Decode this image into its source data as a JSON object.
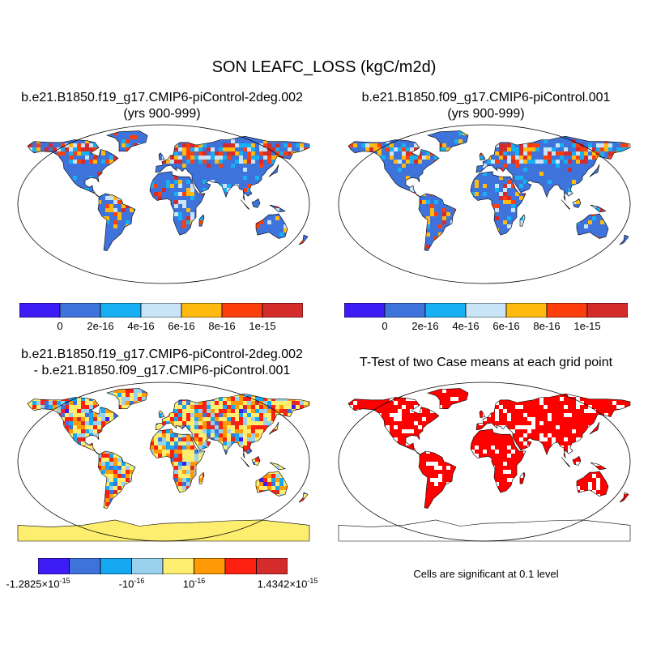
{
  "title": "SON LEAFC_LOSS (kgC/m2d)",
  "panels": {
    "top_left": {
      "title_line1": "b.e21.B1850.f19_g17.CMIP6-piControl-2deg.002",
      "title_line2": "(yrs 900-999)"
    },
    "top_right": {
      "title_line1": "b.e21.B1850.f09_g17.CMIP6-piControl.001",
      "title_line2": "(yrs 900-999)"
    },
    "bottom_left": {
      "title_line1": "b.e21.B1850.f19_g17.CMIP6-piControl-2deg.002",
      "title_line2": "- b.e21.B1850.f09_g17.CMIP6-piControl.001"
    },
    "bottom_right": {
      "title": "T-Test of two Case means at each grid point",
      "note": "Cells are significant at 0.1 level"
    }
  },
  "colorbar_top": {
    "colors": [
      "#3e1cf5",
      "#3f73dc",
      "#16b0f3",
      "#c8e4f6",
      "#ffb90f",
      "#fe3e0c",
      "#d42b2b"
    ],
    "labels": [
      "0",
      "2e-16",
      "4e-16",
      "6e-16",
      "8e-16",
      "1e-15"
    ]
  },
  "colorbar_diff": {
    "colors": [
      "#3e1cf5",
      "#3f73dc",
      "#16a8f3",
      "#9ad2ee",
      "#fdee70",
      "#ff9a06",
      "#fe2010",
      "#d42b2b"
    ],
    "labels": [
      {
        "base": "-1.2825×10",
        "exp": "-15"
      },
      {
        "base": "-10",
        "exp": "-16"
      },
      {
        "base": "10",
        "exp": "-16"
      },
      {
        "base": "1.4342×10",
        "exp": "-15"
      }
    ]
  },
  "map_colors": {
    "land_base_mean": "#3f73dc",
    "land_base_diff": "#fdee70",
    "significant": "#ff0000",
    "outline": "#000000"
  }
}
